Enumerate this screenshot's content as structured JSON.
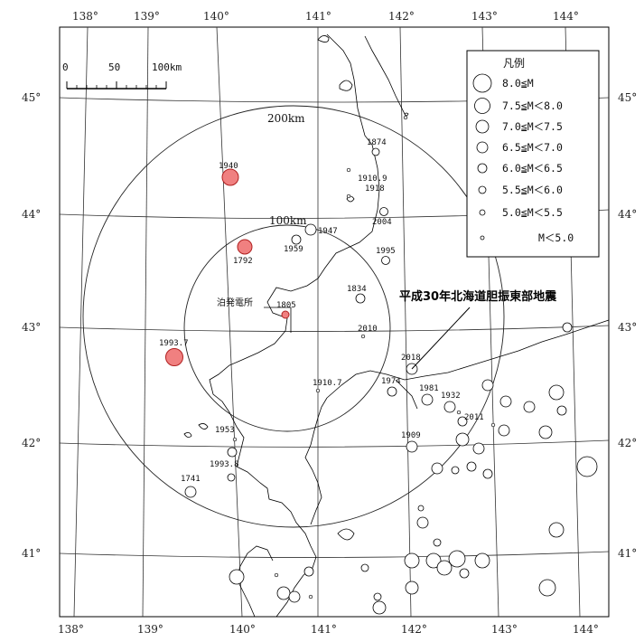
{
  "map": {
    "longitude_labels": [
      "138°",
      "139°",
      "140°",
      "141°",
      "142°",
      "143°",
      "144°"
    ],
    "latitude_labels": [
      "41°",
      "42°",
      "43°",
      "44°",
      "45°"
    ],
    "scale_bar": {
      "zero": "0",
      "mid": "50",
      "end": "100km"
    },
    "rings": {
      "inner": "100km",
      "outer": "200km"
    },
    "power_plant": "泊発電所",
    "main_event_label": "平成30年北海道胆振東部地震",
    "legend": {
      "title": "凡例",
      "items": [
        "8.0≦M",
        "7.5≦M＜8.0",
        "7.0≦M＜7.5",
        "6.5≦M＜7.0",
        "6.0≦M＜6.5",
        "5.5≦M＜6.0",
        "5.0≦M＜5.5",
        "M＜5.0"
      ]
    },
    "colors": {
      "historic_fill": "#f08080",
      "historic_stroke": "#c0282a",
      "line": "#000000"
    },
    "labeled_events": [
      {
        "year": "1940",
        "class": "large",
        "color": "red"
      },
      {
        "year": "1792",
        "class": "medium",
        "color": "red"
      },
      {
        "year": "1805",
        "class": "small",
        "color": "red"
      },
      {
        "year": "1993.7",
        "class": "large",
        "color": "red"
      },
      {
        "year": "1874"
      },
      {
        "year": "1910.9"
      },
      {
        "year": "1918"
      },
      {
        "year": "2004"
      },
      {
        "year": "1947"
      },
      {
        "year": "1959"
      },
      {
        "year": "1995"
      },
      {
        "year": "1834"
      },
      {
        "year": "2010"
      },
      {
        "year": "2018"
      },
      {
        "year": "1974"
      },
      {
        "year": "1981"
      },
      {
        "year": "1932"
      },
      {
        "year": "2011"
      },
      {
        "year": "1910.7"
      },
      {
        "year": "1909"
      },
      {
        "year": "1953"
      },
      {
        "year": "1993.8"
      },
      {
        "year": "1741"
      }
    ]
  }
}
